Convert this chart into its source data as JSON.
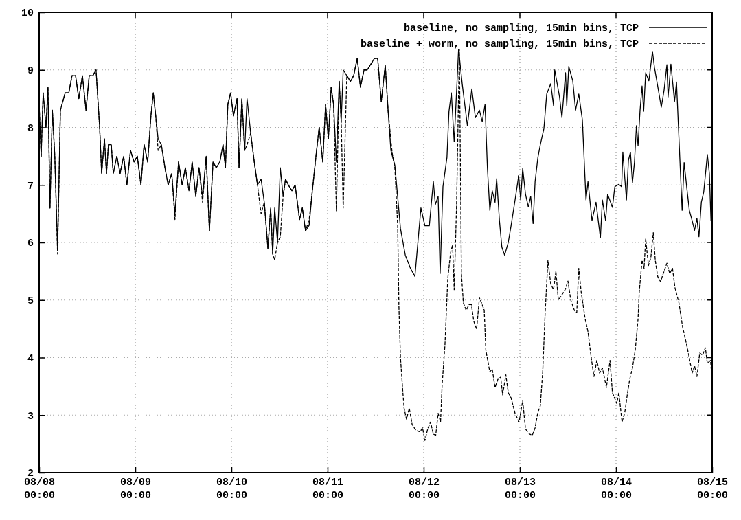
{
  "chart_data": {
    "type": "line",
    "legend": "top right",
    "grid": true,
    "xlim": [
      "--08-08T00:00",
      "--08-15T00:00"
    ],
    "ylim": [
      2,
      10
    ],
    "xticks": [
      {
        "value": "--08-08T00:00",
        "label": "08/08\n00:00"
      },
      {
        "value": "--08-09T00:00",
        "label": "08/09\n00:00"
      },
      {
        "value": "--08-10T00:00",
        "label": "08/10\n00:00"
      },
      {
        "value": "--08-11T00:00",
        "label": "08/11\n00:00"
      },
      {
        "value": "--08-12T00:00",
        "label": "08/12\n00:00"
      },
      {
        "value": "--08-13T00:00",
        "label": "08/13\n00:00"
      },
      {
        "value": "--08-14T00:00",
        "label": "08/14\n00:00"
      },
      {
        "value": "--08-15T00:00",
        "label": "08/15\n00:00"
      }
    ],
    "yticks": [
      2,
      3,
      4,
      5,
      6,
      7,
      8,
      9,
      10
    ],
    "series": [
      {
        "name": "baseline, no sampling, 15min bins, TCP",
        "color": "#000000",
        "line_style": "solid",
        "x": [
          "--08-08T00:00",
          "--08-08T00:30",
          "--08-08T01:00",
          "--08-08T01:42",
          "--08-08T02:12",
          "--08-08T02:42",
          "--08-08T03:18",
          "--08-08T03:54",
          "--08-08T04:36",
          "--08-08T05:18",
          "--08-08T06:30",
          "--08-08T07:24",
          "--08-08T08:12",
          "--08-08T09:06",
          "--08-08T09:54",
          "--08-08T10:48",
          "--08-08T11:42",
          "--08-08T12:30",
          "--08-08T13:24",
          "--08-08T14:12",
          "--08-08T15:06",
          "--08-08T15:36",
          "--08-08T16:18",
          "--08-08T16:48",
          "--08-08T17:18",
          "--08-08T18:00",
          "--08-08T18:30",
          "--08-08T19:24",
          "--08-08T20:12",
          "--08-08T21:06",
          "--08-08T21:54",
          "--08-08T22:48",
          "--08-08T23:42",
          "--08-09T00:30",
          "--08-09T01:24",
          "--08-09T02:12",
          "--08-09T03:06",
          "--08-09T03:54",
          "--08-09T04:30",
          "--08-09T05:06",
          "--08-09T05:42",
          "--08-09T06:30",
          "--08-09T07:24",
          "--08-09T08:12",
          "--08-09T09:06",
          "--08-09T09:54",
          "--08-09T10:48",
          "--08-09T11:42",
          "--08-09T12:30",
          "--08-09T13:24",
          "--08-09T14:12",
          "--08-09T15:06",
          "--08-09T15:54",
          "--08-09T16:48",
          "--08-09T17:42",
          "--08-09T18:30",
          "--08-09T19:24",
          "--08-09T20:12",
          "--08-09T21:06",
          "--08-09T21:54",
          "--08-09T22:30",
          "--08-09T23:06",
          "--08-09T23:48",
          "--08-10T00:30",
          "--08-10T01:24",
          "--08-10T01:54",
          "--08-10T02:36",
          "--08-10T03:18",
          "--08-10T03:54",
          "--08-10T04:48",
          "--08-10T05:42",
          "--08-10T06:30",
          "--08-10T07:24",
          "--08-10T08:12",
          "--08-10T09:06",
          "--08-10T09:48",
          "--08-10T10:18",
          "--08-10T10:48",
          "--08-10T11:30",
          "--08-10T12:12",
          "--08-10T12:54",
          "--08-10T13:30",
          "--08-10T14:12",
          "--08-10T15:06",
          "--08-10T15:54",
          "--08-10T17:00",
          "--08-10T17:42",
          "--08-10T18:30",
          "--08-10T19:24",
          "--08-10T20:12",
          "--08-10T21:06",
          "--08-10T21:54",
          "--08-10T22:48",
          "--08-10T23:30",
          "--08-11T00:12",
          "--08-11T00:54",
          "--08-11T01:30",
          "--08-11T02:12",
          "--08-11T02:54",
          "--08-11T03:24",
          "--08-11T03:54",
          "--08-11T04:48",
          "--08-11T05:42",
          "--08-11T06:30",
          "--08-11T07:24",
          "--08-11T08:12",
          "--08-11T09:06",
          "--08-11T09:54",
          "--08-11T10:48",
          "--08-11T11:42",
          "--08-11T12:30",
          "--08-11T13:24",
          "--08-11T14:24",
          "--08-11T15:06",
          "--08-11T15:48",
          "--08-11T16:48",
          "--08-11T18:12",
          "--08-11T19:24",
          "--08-11T20:42",
          "--08-11T21:48",
          "--08-11T23:18",
          "--08-12T00:18",
          "--08-12T01:24",
          "--08-12T02:24",
          "--08-12T02:54",
          "--08-12T03:36",
          "--08-12T04:06",
          "--08-12T04:48",
          "--08-12T05:48",
          "--08-12T06:18",
          "--08-12T06:54",
          "--08-12T07:36",
          "--08-12T08:42",
          "--08-12T09:36",
          "--08-12T10:54",
          "--08-12T12:00",
          "--08-12T12:54",
          "--08-12T13:54",
          "--08-12T14:36",
          "--08-12T15:18",
          "--08-12T15:54",
          "--08-12T16:30",
          "--08-12T17:06",
          "--08-12T17:48",
          "--08-12T18:12",
          "--08-12T18:54",
          "--08-12T19:30",
          "--08-12T20:12",
          "--08-12T21:06",
          "--08-12T21:48",
          "--08-12T22:48",
          "--08-12T23:42",
          "--08-13T00:12",
          "--08-13T00:42",
          "--08-13T01:24",
          "--08-13T02:06",
          "--08-13T02:42",
          "--08-13T03:18",
          "--08-13T03:48",
          "--08-13T04:30",
          "--08-13T05:06",
          "--08-13T06:00",
          "--08-13T06:42",
          "--08-13T07:42",
          "--08-13T08:24",
          "--08-13T08:42",
          "--08-13T09:54",
          "--08-13T10:30",
          "--08-13T11:24",
          "--08-13T11:42",
          "--08-13T12:12",
          "--08-13T13:12",
          "--08-13T13:54",
          "--08-13T14:42",
          "--08-13T15:36",
          "--08-13T16:30",
          "--08-13T17:00",
          "--08-13T18:00",
          "--08-13T19:00",
          "--08-13T20:06",
          "--08-13T20:36",
          "--08-13T21:24",
          "--08-13T21:54",
          "--08-13T23:06",
          "--08-13T23:42",
          "--08-14T00:42",
          "--08-14T01:24",
          "--08-14T01:42",
          "--08-14T02:36",
          "--08-14T03:06",
          "--08-14T03:36",
          "--08-14T04:06",
          "--08-14T04:36",
          "--08-14T05:06",
          "--08-14T05:30",
          "--08-14T06:00",
          "--08-14T06:30",
          "--08-14T06:54",
          "--08-14T07:24",
          "--08-14T08:12",
          "--08-14T09:06",
          "--08-14T09:36",
          "--08-14T10:24",
          "--08-14T11:18",
          "--08-14T12:00",
          "--08-14T12:42",
          "--08-14T13:00",
          "--08-14T13:42",
          "--08-14T14:36",
          "--08-14T15:06",
          "--08-14T15:36",
          "--08-14T16:30",
          "--08-14T17:00",
          "--08-14T17:42",
          "--08-14T18:18",
          "--08-14T19:00",
          "--08-14T19:36",
          "--08-14T20:12",
          "--08-14T20:42",
          "--08-14T21:18",
          "--08-14T21:54",
          "--08-14T22:48",
          "--08-14T23:18",
          "--08-14T23:42",
          "--08-15T00:00"
        ],
        "values": [
          8.4,
          7.5,
          8.6,
          8.0,
          8.7,
          6.6,
          8.3,
          7.5,
          5.9,
          8.3,
          8.6,
          8.6,
          8.9,
          8.9,
          8.5,
          8.9,
          8.3,
          8.9,
          8.9,
          9.0,
          8.0,
          7.2,
          7.8,
          7.2,
          7.7,
          7.7,
          7.2,
          7.5,
          7.2,
          7.5,
          7.0,
          7.6,
          7.4,
          7.5,
          7.0,
          7.7,
          7.4,
          8.2,
          8.6,
          8.2,
          7.8,
          7.7,
          7.3,
          7.0,
          7.2,
          6.5,
          7.4,
          7.0,
          7.3,
          6.9,
          7.4,
          6.8,
          7.3,
          6.8,
          7.5,
          6.2,
          7.4,
          7.3,
          7.4,
          7.7,
          7.3,
          8.4,
          8.6,
          8.2,
          8.5,
          7.3,
          8.5,
          7.6,
          8.5,
          7.9,
          7.4,
          7.0,
          7.1,
          6.7,
          5.9,
          6.6,
          5.8,
          6.6,
          6.0,
          7.3,
          6.8,
          7.1,
          7.0,
          6.9,
          7.0,
          6.4,
          6.6,
          6.2,
          6.3,
          6.9,
          7.5,
          8.0,
          7.4,
          8.4,
          7.8,
          8.7,
          8.4,
          7.4,
          8.8,
          8.1,
          9.0,
          8.9,
          8.8,
          8.9,
          9.2,
          8.7,
          9.0,
          9.0,
          9.1,
          9.2,
          9.2,
          8.45,
          9.08,
          8.3,
          7.6,
          7.34,
          6.24,
          5.78,
          5.55,
          5.41,
          6.6,
          6.29,
          6.29,
          7.06,
          6.66,
          6.8,
          5.46,
          6.97,
          7.48,
          8.28,
          8.6,
          7.75,
          9.36,
          8.76,
          8.03,
          8.67,
          8.17,
          8.3,
          8.1,
          8.4,
          7.29,
          6.56,
          6.9,
          6.7,
          7.11,
          6.38,
          5.92,
          5.78,
          6.0,
          6.29,
          6.74,
          7.16,
          6.74,
          7.29,
          6.84,
          6.62,
          6.8,
          6.33,
          7.06,
          7.48,
          7.7,
          7.98,
          8.58,
          8.76,
          8.38,
          9.0,
          8.53,
          8.17,
          8.95,
          8.38,
          9.06,
          8.81,
          8.3,
          8.58,
          8.13,
          6.74,
          7.06,
          6.38,
          6.7,
          6.08,
          6.74,
          6.38,
          6.84,
          6.61,
          6.97,
          7.01,
          6.97,
          7.57,
          6.74,
          7.43,
          7.57,
          7.04,
          7.39,
          8.03,
          7.68,
          8.3,
          8.72,
          8.28,
          8.95,
          8.81,
          9.32,
          9.04,
          8.72,
          8.35,
          8.65,
          9.09,
          8.53,
          9.1,
          8.45,
          8.79,
          7.98,
          6.56,
          7.39,
          6.93,
          6.56,
          6.38,
          6.21,
          6.42,
          6.1,
          6.7,
          6.88,
          7.53,
          7.2,
          6.38,
          6.45
        ]
      },
      {
        "name": "baseline + worm, no sampling, 15min bins, TCP",
        "color": "#000000",
        "line_style": "dashed",
        "x": [
          "--08-08T00:00",
          "--08-08T00:30",
          "--08-08T01:00",
          "--08-08T01:42",
          "--08-08T02:12",
          "--08-08T02:42",
          "--08-08T03:18",
          "--08-08T03:54",
          "--08-08T04:36",
          "--08-08T05:18",
          "--08-08T06:30",
          "--08-08T07:24",
          "--08-08T08:12",
          "--08-08T09:06",
          "--08-08T09:54",
          "--08-08T10:48",
          "--08-08T11:42",
          "--08-08T12:30",
          "--08-08T13:24",
          "--08-08T14:12",
          "--08-08T15:06",
          "--08-08T15:36",
          "--08-08T16:18",
          "--08-08T16:48",
          "--08-08T17:18",
          "--08-08T18:00",
          "--08-08T18:30",
          "--08-08T19:24",
          "--08-08T20:12",
          "--08-08T21:06",
          "--08-08T21:54",
          "--08-08T22:48",
          "--08-08T23:42",
          "--08-09T00:30",
          "--08-09T01:24",
          "--08-09T02:12",
          "--08-09T03:06",
          "--08-09T03:54",
          "--08-09T04:30",
          "--08-09T05:06",
          "--08-09T05:42",
          "--08-09T06:30",
          "--08-09T07:24",
          "--08-09T08:12",
          "--08-09T09:06",
          "--08-09T09:54",
          "--08-09T10:48",
          "--08-09T11:42",
          "--08-09T12:30",
          "--08-09T13:24",
          "--08-09T14:12",
          "--08-09T15:06",
          "--08-09T15:54",
          "--08-09T16:48",
          "--08-09T17:42",
          "--08-09T18:30",
          "--08-09T19:24",
          "--08-09T20:12",
          "--08-09T21:06",
          "--08-09T21:54",
          "--08-09T22:30",
          "--08-09T23:06",
          "--08-09T23:48",
          "--08-10T00:30",
          "--08-10T01:24",
          "--08-10T01:54",
          "--08-10T02:36",
          "--08-10T03:18",
          "--08-10T03:54",
          "--08-10T04:48",
          "--08-10T05:42",
          "--08-10T06:30",
          "--08-10T07:24",
          "--08-10T08:12",
          "--08-10T09:06",
          "--08-10T09:48",
          "--08-10T10:18",
          "--08-10T10:48",
          "--08-10T11:30",
          "--08-10T12:12",
          "--08-10T12:54",
          "--08-10T13:30",
          "--08-10T14:12",
          "--08-10T15:06",
          "--08-10T15:54",
          "--08-10T17:00",
          "--08-10T17:42",
          "--08-10T18:30",
          "--08-10T19:24",
          "--08-10T20:12",
          "--08-10T21:06",
          "--08-10T21:54",
          "--08-10T22:48",
          "--08-10T23:30",
          "--08-11T00:12",
          "--08-11T00:54",
          "--08-11T01:30",
          "--08-11T02:12",
          "--08-11T02:54",
          "--08-11T03:24",
          "--08-11T03:54",
          "--08-11T04:48",
          "--08-11T05:42",
          "--08-11T06:30",
          "--08-11T07:24",
          "--08-11T08:12",
          "--08-11T09:06",
          "--08-11T09:54",
          "--08-11T10:48",
          "--08-11T11:42",
          "--08-11T12:30",
          "--08-11T13:24",
          "--08-11T14:24",
          "--08-11T15:06",
          "--08-11T16:06",
          "--08-11T16:48",
          "--08-11T17:30",
          "--08-11T17:48",
          "--08-11T18:12",
          "--08-11T18:48",
          "--08-11T19:06",
          "--08-11T19:42",
          "--08-11T20:24",
          "--08-11T21:06",
          "--08-11T22:06",
          "--08-11T23:06",
          "--08-11T23:42",
          "--08-12T00:18",
          "--08-12T01:00",
          "--08-12T01:42",
          "--08-12T02:24",
          "--08-12T03:00",
          "--08-12T03:36",
          "--08-12T04:12",
          "--08-12T04:36",
          "--08-12T05:18",
          "--08-12T06:00",
          "--08-12T06:42",
          "--08-12T07:12",
          "--08-12T07:36",
          "--08-12T08:12",
          "--08-12T08:54",
          "--08-12T09:24",
          "--08-12T09:54",
          "--08-12T10:36",
          "--08-12T11:18",
          "--08-12T11:54",
          "--08-12T12:30",
          "--08-12T13:12",
          "--08-12T13:54",
          "--08-12T14:36",
          "--08-12T15:06",
          "--08-12T15:30",
          "--08-12T16:30",
          "--08-12T17:06",
          "--08-12T17:48",
          "--08-12T18:30",
          "--08-12T19:12",
          "--08-12T19:42",
          "--08-12T20:30",
          "--08-12T21:06",
          "--08-12T21:48",
          "--08-12T22:48",
          "--08-12T23:48",
          "--08-13T00:42",
          "--08-13T01:24",
          "--08-13T02:24",
          "--08-13T03:06",
          "--08-13T03:48",
          "--08-13T04:30",
          "--08-13T05:06",
          "--08-13T05:42",
          "--08-13T06:18",
          "--08-13T07:00",
          "--08-13T07:42",
          "--08-13T08:24",
          "--08-13T09:00",
          "--08-13T09:36",
          "--08-13T10:18",
          "--08-13T11:18",
          "--08-13T12:00",
          "--08-13T12:42",
          "--08-13T13:36",
          "--08-13T14:12",
          "--08-13T14:42",
          "--08-13T15:18",
          "--08-13T16:18",
          "--08-13T17:00",
          "--08-13T17:54",
          "--08-13T18:30",
          "--08-13T19:12",
          "--08-13T19:54",
          "--08-13T20:36",
          "--08-13T21:36",
          "--08-13T22:30",
          "--08-13T23:06",
          "--08-14T00:12",
          "--08-14T00:42",
          "--08-14T01:30",
          "--08-14T02:12",
          "--08-14T02:48",
          "--08-14T03:24",
          "--08-14T04:06",
          "--08-14T04:48",
          "--08-14T05:30",
          "--08-14T05:48",
          "--08-14T06:30",
          "--08-14T07:00",
          "--08-14T07:24",
          "--08-14T08:06",
          "--08-14T08:42",
          "--08-14T09:18",
          "--08-14T09:48",
          "--08-14T10:24",
          "--08-14T11:06",
          "--08-14T12:00",
          "--08-14T12:42",
          "--08-14T13:24",
          "--08-14T14:06",
          "--08-14T14:42",
          "--08-14T15:42",
          "--08-14T16:36",
          "--08-14T17:42",
          "--08-14T18:18",
          "--08-14T19:00",
          "--08-14T19:36",
          "--08-14T20:12",
          "--08-14T20:54",
          "--08-14T21:36",
          "--08-14T22:18",
          "--08-14T22:48",
          "--08-14T23:36",
          "--08-14T23:54"
        ],
        "values": [
          8.4,
          7.5,
          8.6,
          8.0,
          8.7,
          6.6,
          8.3,
          7.5,
          5.8,
          8.3,
          8.6,
          8.6,
          8.9,
          8.9,
          8.5,
          8.9,
          8.3,
          8.9,
          8.9,
          9.0,
          8.0,
          7.2,
          7.8,
          7.2,
          7.7,
          7.7,
          7.2,
          7.5,
          7.2,
          7.5,
          7.0,
          7.6,
          7.4,
          7.5,
          7.0,
          7.7,
          7.4,
          8.2,
          8.6,
          8.2,
          7.6,
          7.7,
          7.3,
          7.0,
          7.2,
          6.4,
          7.4,
          7.0,
          7.3,
          6.9,
          7.4,
          6.8,
          7.3,
          6.7,
          7.5,
          6.2,
          7.4,
          7.3,
          7.4,
          7.7,
          7.3,
          8.4,
          8.6,
          8.2,
          8.5,
          7.3,
          8.5,
          7.6,
          7.7,
          7.9,
          7.4,
          7.0,
          6.5,
          6.7,
          5.9,
          6.6,
          5.8,
          5.7,
          6.0,
          6.1,
          6.8,
          7.1,
          7.0,
          6.9,
          7.0,
          6.4,
          6.6,
          6.2,
          6.4,
          6.9,
          7.5,
          8.0,
          7.4,
          8.4,
          7.8,
          8.7,
          8.4,
          6.55,
          8.8,
          8.1,
          6.6,
          8.9,
          8.8,
          8.9,
          9.2,
          8.7,
          9.0,
          9.0,
          9.1,
          9.2,
          9.2,
          8.45,
          9.08,
          8.3,
          7.57,
          7.29,
          6.29,
          4.9,
          3.99,
          3.39,
          3.12,
          2.93,
          3.12,
          2.84,
          2.73,
          2.71,
          2.78,
          2.56,
          2.76,
          2.88,
          2.67,
          2.65,
          3.03,
          2.88,
          3.53,
          4.22,
          5.37,
          5.82,
          5.96,
          5.18,
          6.65,
          9.36,
          5.46,
          4.95,
          4.82,
          4.92,
          4.92,
          4.63,
          4.49,
          5.04,
          4.92,
          4.82,
          4.13,
          3.75,
          3.8,
          3.48,
          3.62,
          3.66,
          3.35,
          3.7,
          3.39,
          3.3,
          3.03,
          2.88,
          3.25,
          2.76,
          2.67,
          2.65,
          2.78,
          3.05,
          3.16,
          3.75,
          4.77,
          5.69,
          5.28,
          5.18,
          5.5,
          5.0,
          5.07,
          5.18,
          5.33,
          5.0,
          4.82,
          4.78,
          5.55,
          5.14,
          4.67,
          4.45,
          3.95,
          3.67,
          3.95,
          3.73,
          3.82,
          3.48,
          3.95,
          3.39,
          3.2,
          3.39,
          2.88,
          3.05,
          3.35,
          3.62,
          3.82,
          4.13,
          4.67,
          5.14,
          5.69,
          5.55,
          6.06,
          5.6,
          5.74,
          6.17,
          5.69,
          5.41,
          5.32,
          5.5,
          5.64,
          5.46,
          5.55,
          5.22,
          4.95,
          4.54,
          4.2,
          3.99,
          3.73,
          3.86,
          3.67,
          4.08,
          4.04,
          4.17,
          3.9,
          3.95,
          3.67
        ]
      }
    ]
  }
}
